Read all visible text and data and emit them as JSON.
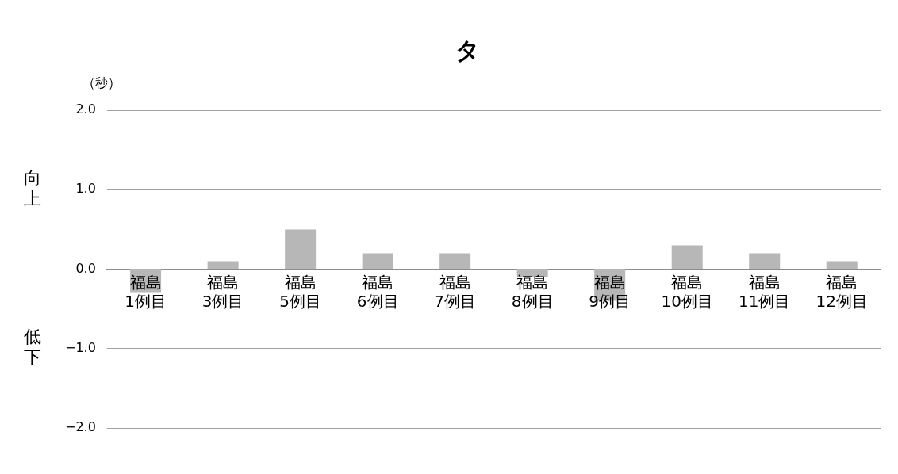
{
  "chart_data": {
    "type": "bar",
    "title": "タ",
    "ylabel": "（秒）",
    "annotations": [
      "向上",
      "低下"
    ],
    "categories": [
      "福島\n1例目",
      "福島\n3例目",
      "福島\n5例目",
      "福島\n6例目",
      "福島\n7例目",
      "福島\n8例目",
      "福島\n9例目",
      "福島\n10例目",
      "福島\n11例目",
      "福島\n12例目"
    ],
    "values": [
      -0.3,
      0.1,
      0.5,
      0.2,
      0.2,
      -0.1,
      -0.4,
      0.3,
      0.2,
      0.1
    ],
    "color": "#b7b7b7",
    "ylim": [
      -2,
      2
    ],
    "yticks": [
      {
        "value": -2,
        "label": "−2.0"
      },
      {
        "value": -1,
        "label": "−1.0"
      },
      {
        "value": 0,
        "label": "0.0"
      },
      {
        "value": 1,
        "label": "1.0"
      },
      {
        "value": 2,
        "label": "2.0"
      }
    ],
    "grid": "y",
    "legend": false
  }
}
